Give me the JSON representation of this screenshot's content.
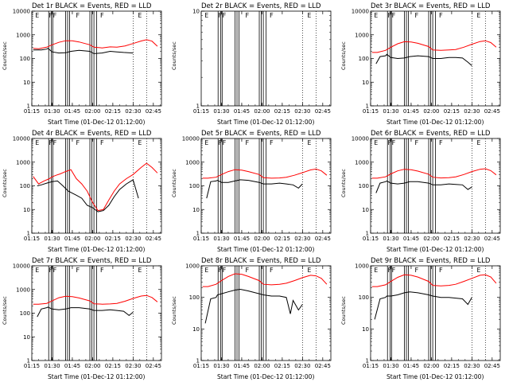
{
  "chart_data": {
    "type": "line",
    "layout": "3x3 grid",
    "colors": {
      "events": "#000000",
      "lld": "#ff0000"
    },
    "x_tick_labels": [
      "01:15",
      "01:30",
      "01:45",
      "02:00",
      "02:15",
      "02:30",
      "02:45"
    ],
    "x_tick_minutes": [
      75,
      90,
      105,
      120,
      135,
      150,
      165
    ],
    "xlim_minutes": [
      75,
      171
    ],
    "xlabel": "Start Time (01-Dec-12 01:12:00)",
    "ylabel": "Counts/sec",
    "markers": [
      {
        "label": "E",
        "minute": 77
      },
      {
        "label": "F",
        "minute": 87
      },
      {
        "label": "F",
        "minute": 90
      },
      {
        "label": "F",
        "minute": 107
      },
      {
        "label": "F",
        "minute": 125
      },
      {
        "label": "E",
        "minute": 153
      }
    ],
    "panels": [
      {
        "title": "Det 1r BLACK = Events, RED = LLD",
        "ylim": [
          1,
          10000
        ],
        "ytick_labels": [
          "1",
          "10",
          "100",
          "1000",
          "10000"
        ],
        "gaps_minutes": [
          [
            87.5,
            89.5
          ],
          [
            90.5,
            100
          ],
          [
            101.5,
            103
          ],
          [
            118,
            119.5
          ],
          [
            121,
            123
          ]
        ],
        "lld": {
          "x": [
            76,
            80,
            86,
            90,
            95,
            100,
            105,
            110,
            118,
            121,
            127,
            133,
            138,
            144,
            150,
            156,
            160,
            164,
            168
          ],
          "y": [
            270,
            260,
            300,
            380,
            480,
            560,
            560,
            500,
            380,
            300,
            280,
            310,
            300,
            340,
            430,
            550,
            620,
            540,
            330
          ]
        },
        "events": {
          "x": [
            76,
            82,
            86,
            87,
            90,
            95,
            100,
            104,
            110,
            118,
            121,
            127,
            133,
            138,
            143,
            150
          ],
          "y": [
            230,
            230,
            250,
            270,
            190,
            170,
            175,
            200,
            220,
            200,
            160,
            170,
            200,
            190,
            180,
            170
          ]
        }
      },
      {
        "title": "Det 2r BLACK = Events, RED = LLD",
        "ylim": [
          1,
          10
        ],
        "ytick_labels": [
          "1",
          "10"
        ],
        "gaps_minutes": [
          [
            87.5,
            89.5
          ],
          [
            90.5,
            100
          ],
          [
            101.5,
            103
          ],
          [
            118,
            119.5
          ],
          [
            121,
            123
          ]
        ],
        "lld": {
          "x": [],
          "y": []
        },
        "events": {
          "x": [],
          "y": []
        }
      },
      {
        "title": "Det 3r BLACK = Events, RED = LLD",
        "ylim": [
          1,
          10000
        ],
        "ytick_labels": [
          "1",
          "10",
          "100",
          "1000",
          "10000"
        ],
        "gaps_minutes": [
          [
            87.5,
            89.5
          ],
          [
            90.5,
            100
          ],
          [
            101.5,
            103
          ],
          [
            118,
            119.5
          ],
          [
            121,
            123
          ]
        ],
        "lld": {
          "x": [
            76,
            80,
            86,
            90,
            95,
            100,
            105,
            110,
            118,
            121,
            127,
            133,
            138,
            144,
            150,
            156,
            160,
            164,
            168
          ],
          "y": [
            180,
            180,
            220,
            300,
            420,
            510,
            500,
            440,
            320,
            230,
            220,
            230,
            240,
            300,
            400,
            520,
            560,
            470,
            300
          ]
        },
        "events": {
          "x": [
            79,
            82,
            86,
            87,
            90,
            95,
            100,
            104,
            110,
            118,
            121,
            127,
            133,
            138,
            143,
            147,
            150
          ],
          "y": [
            60,
            120,
            130,
            150,
            110,
            100,
            105,
            120,
            130,
            120,
            100,
            100,
            110,
            110,
            105,
            70,
            50
          ]
        }
      },
      {
        "title": "Det 4r BLACK = Events, RED = LLD",
        "ylim": [
          1,
          10000
        ],
        "ytick_labels": [
          "1",
          "10",
          "100",
          "1000",
          "10000"
        ],
        "gaps_minutes": [
          [
            87.5,
            89.5
          ],
          [
            90.5,
            100
          ],
          [
            101.5,
            103
          ],
          [
            118,
            119.5
          ],
          [
            121,
            123
          ]
        ],
        "lld": {
          "x": [
            76,
            80,
            84,
            88,
            90,
            93,
            96,
            100,
            104,
            108,
            112,
            116,
            120,
            124,
            128,
            132,
            136,
            140,
            145,
            150,
            156,
            160,
            164,
            168
          ],
          "y": [
            250,
            120,
            160,
            200,
            240,
            280,
            320,
            400,
            480,
            200,
            120,
            60,
            20,
            9,
            10,
            25,
            60,
            120,
            200,
            300,
            600,
            900,
            600,
            350
          ]
        },
        "events": {
          "x": [
            79,
            82,
            86,
            90,
            94,
            98,
            102,
            108,
            112,
            116,
            120,
            124,
            128,
            132,
            136,
            140,
            145,
            150,
            154
          ],
          "y": [
            100,
            110,
            130,
            150,
            160,
            100,
            60,
            40,
            30,
            15,
            12,
            8,
            9,
            15,
            35,
            70,
            120,
            180,
            30
          ]
        }
      },
      {
        "title": "Det 5r BLACK = Events, RED = LLD",
        "ylim": [
          1,
          10000
        ],
        "ytick_labels": [
          "1",
          "10",
          "100",
          "1000",
          "10000"
        ],
        "gaps_minutes": [
          [
            87.5,
            89.5
          ],
          [
            90.5,
            100
          ],
          [
            101.5,
            103
          ],
          [
            118,
            119.5
          ],
          [
            121,
            123
          ]
        ],
        "lld": {
          "x": [
            76,
            80,
            86,
            90,
            95,
            100,
            105,
            110,
            118,
            121,
            127,
            133,
            138,
            144,
            150,
            156,
            160,
            164,
            168
          ],
          "y": [
            210,
            210,
            230,
            300,
            400,
            480,
            460,
            400,
            300,
            220,
            210,
            215,
            230,
            280,
            360,
            470,
            510,
            430,
            280
          ]
        },
        "events": {
          "x": [
            79,
            82,
            86,
            87,
            90,
            95,
            100,
            104,
            110,
            118,
            121,
            127,
            133,
            138,
            143,
            147,
            150
          ],
          "y": [
            30,
            150,
            160,
            170,
            140,
            140,
            160,
            180,
            170,
            140,
            120,
            120,
            130,
            120,
            110,
            80,
            120
          ]
        }
      },
      {
        "title": "Det 6r BLACK = Events, RED = LLD",
        "ylim": [
          1,
          10000
        ],
        "ytick_labels": [
          "1",
          "10",
          "100",
          "1000",
          "10000"
        ],
        "gaps_minutes": [
          [
            87.5,
            89.5
          ],
          [
            90.5,
            100
          ],
          [
            101.5,
            103
          ],
          [
            118,
            119.5
          ],
          [
            121,
            123
          ]
        ],
        "lld": {
          "x": [
            76,
            80,
            86,
            90,
            95,
            100,
            105,
            110,
            118,
            121,
            127,
            133,
            138,
            144,
            150,
            156,
            160,
            164,
            168
          ],
          "y": [
            210,
            210,
            240,
            320,
            430,
            500,
            480,
            420,
            310,
            230,
            215,
            220,
            240,
            300,
            400,
            500,
            530,
            440,
            290
          ]
        },
        "events": {
          "x": [
            79,
            82,
            86,
            87,
            90,
            95,
            100,
            104,
            110,
            118,
            121,
            127,
            133,
            138,
            143,
            147,
            150
          ],
          "y": [
            50,
            130,
            150,
            160,
            130,
            120,
            130,
            150,
            150,
            130,
            110,
            110,
            120,
            115,
            110,
            70,
            90
          ]
        }
      },
      {
        "title": "Det 7r BLACK = Events, RED = LLD",
        "ylim": [
          1,
          10000
        ],
        "ytick_labels": [
          "1",
          "10",
          "100",
          "1000",
          "10000"
        ],
        "gaps_minutes": [
          [
            87.5,
            89.5
          ],
          [
            90.5,
            100
          ],
          [
            101.5,
            103
          ],
          [
            118,
            119.5
          ],
          [
            121,
            123
          ]
        ],
        "lld": {
          "x": [
            76,
            80,
            86,
            90,
            95,
            100,
            105,
            110,
            118,
            121,
            127,
            133,
            138,
            144,
            150,
            156,
            160,
            164,
            168
          ],
          "y": [
            240,
            240,
            260,
            330,
            450,
            520,
            500,
            440,
            330,
            250,
            240,
            245,
            260,
            320,
            420,
            530,
            560,
            460,
            300
          ]
        },
        "events": {
          "x": [
            79,
            82,
            86,
            87,
            90,
            95,
            100,
            104,
            110,
            118,
            121,
            127,
            133,
            138,
            143,
            147,
            150
          ],
          "y": [
            70,
            150,
            170,
            180,
            150,
            140,
            150,
            170,
            170,
            150,
            130,
            130,
            140,
            130,
            120,
            80,
            110
          ]
        }
      },
      {
        "title": "Det 8r BLACK = Events, RED = LLD",
        "ylim": [
          1,
          1000
        ],
        "ytick_labels": [
          "1",
          "10",
          "100",
          "1000"
        ],
        "gaps_minutes": [
          [
            87.5,
            89.5
          ],
          [
            90.5,
            100
          ],
          [
            101.5,
            103
          ],
          [
            118,
            119.5
          ],
          [
            121,
            123
          ]
        ],
        "lld": {
          "x": [
            76,
            80,
            86,
            90,
            95,
            100,
            105,
            110,
            118,
            121,
            127,
            133,
            138,
            144,
            150,
            156,
            160,
            164,
            168
          ],
          "y": [
            220,
            220,
            260,
            340,
            460,
            560,
            540,
            460,
            340,
            260,
            250,
            260,
            280,
            340,
            420,
            500,
            480,
            400,
            260
          ]
        },
        "events": {
          "x": [
            78,
            82,
            86,
            87,
            90,
            95,
            100,
            104,
            110,
            118,
            121,
            127,
            133,
            138,
            141,
            143,
            147,
            150
          ],
          "y": [
            15,
            90,
            100,
            120,
            130,
            150,
            170,
            180,
            160,
            130,
            120,
            110,
            110,
            100,
            30,
            80,
            40,
            60
          ]
        }
      },
      {
        "title": "Det 9r BLACK = Events, RED = LLD",
        "ylim": [
          1,
          1000
        ],
        "ytick_labels": [
          "1",
          "10",
          "100",
          "1000"
        ],
        "gaps_minutes": [
          [
            87.5,
            89.5
          ],
          [
            90.5,
            100
          ],
          [
            101.5,
            103
          ],
          [
            118,
            119.5
          ],
          [
            121,
            123
          ]
        ],
        "lld": {
          "x": [
            76,
            80,
            86,
            90,
            95,
            100,
            105,
            110,
            118,
            121,
            127,
            133,
            138,
            144,
            150,
            156,
            160,
            164,
            168
          ],
          "y": [
            220,
            220,
            250,
            320,
            430,
            520,
            500,
            440,
            320,
            240,
            230,
            240,
            260,
            320,
            400,
            500,
            520,
            440,
            280
          ]
        },
        "events": {
          "x": [
            78,
            82,
            86,
            87,
            90,
            95,
            100,
            104,
            110,
            118,
            121,
            127,
            133,
            138,
            143,
            147,
            150
          ],
          "y": [
            20,
            90,
            100,
            110,
            110,
            120,
            140,
            150,
            140,
            120,
            110,
            100,
            100,
            95,
            90,
            60,
            100
          ]
        }
      }
    ]
  }
}
